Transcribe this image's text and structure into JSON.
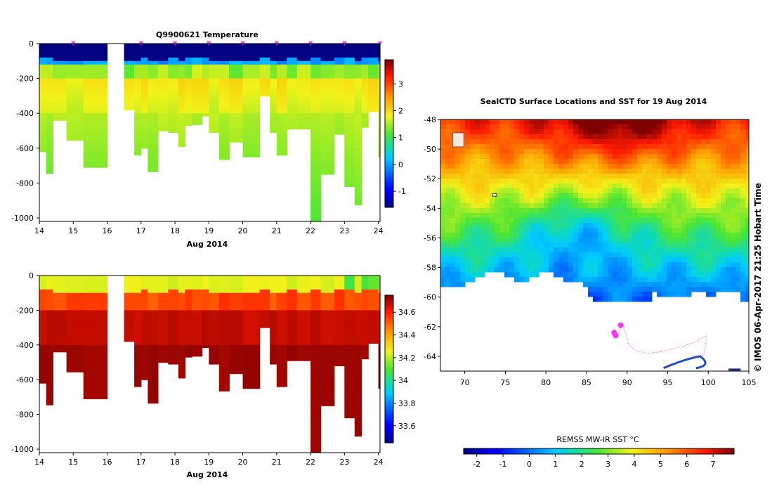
{
  "chart_data": [
    {
      "type": "heatmap",
      "title": "Q9900621  Temperature",
      "xlabel": "Aug 2014",
      "ylabel": "",
      "x_ticks": [
        "14",
        "15",
        "16",
        "17",
        "18",
        "19",
        "20",
        "21",
        "22",
        "23",
        "24"
      ],
      "y_ticks": [
        "0",
        "-200",
        "-400",
        "-600",
        "-800",
        "-1000"
      ],
      "xlim": [
        14,
        24.05
      ],
      "ylim": [
        -1020,
        0
      ],
      "profile_days": [
        14.0,
        14.2,
        14.4,
        14.8,
        15.3,
        16.5,
        16.8,
        17.0,
        17.2,
        17.5,
        17.8,
        18.1,
        18.3,
        18.5,
        18.8,
        19.0,
        19.3,
        19.6,
        20.0,
        20.5,
        20.8,
        21.0,
        21.3,
        21.6,
        22.0,
        22.3,
        22.7,
        23.0,
        23.3,
        23.5,
        23.7,
        24.0
      ],
      "profile_depths": [
        -620,
        -745,
        -440,
        -555,
        -710,
        -380,
        -640,
        -600,
        -735,
        -500,
        -510,
        -590,
        -470,
        -465,
        -415,
        -510,
        -665,
        -565,
        -650,
        -300,
        -510,
        -640,
        -490,
        -490,
        -1020,
        -750,
        -520,
        -820,
        -925,
        -480,
        -390,
        -650
      ],
      "colorbar": {
        "ticks": [
          "3",
          "2",
          "1",
          "0",
          "-1"
        ],
        "range": [
          -1.6,
          3.9
        ],
        "palette": "jet"
      },
      "marker_color": "#ff33ff"
    },
    {
      "type": "heatmap",
      "title": "",
      "xlabel": "Aug 2014",
      "ylabel": "",
      "x_ticks": [
        "14",
        "15",
        "16",
        "17",
        "18",
        "19",
        "20",
        "21",
        "22",
        "23",
        "24"
      ],
      "y_ticks": [
        "0",
        "-200",
        "-400",
        "-600",
        "-800",
        "-1000"
      ],
      "xlim": [
        14,
        24.05
      ],
      "ylim": [
        -1020,
        0
      ],
      "colorbar": {
        "ticks": [
          "34.6",
          "34.4",
          "34.2",
          "34",
          "33.8",
          "33.6"
        ],
        "range": [
          33.45,
          34.75
        ],
        "palette": "jet"
      }
    },
    {
      "type": "heatmap",
      "title": "SealCTD Surface Locations and SST for 19 Aug 2014",
      "x_ticks": [
        "70",
        "75",
        "80",
        "85",
        "90",
        "95",
        "100",
        "105"
      ],
      "y_ticks": [
        "-48",
        "-50",
        "-52",
        "-54",
        "-56",
        "-58",
        "-60",
        "-62",
        "-64"
      ],
      "xlim": [
        67,
        105
      ],
      "ylim": [
        -65,
        -48
      ],
      "colorbar": {
        "label": "REMSS MW-IR SST °C",
        "ticks": [
          "-2",
          "-1",
          "0",
          "1",
          "2",
          "3",
          "4",
          "5",
          "6",
          "7"
        ],
        "range": [
          -2.5,
          7.8
        ],
        "palette": "jet"
      },
      "seal_track_color": "#ff33ff",
      "credit": "© IMOS 06-Apr-2017 21:25 Hobart Time"
    }
  ]
}
